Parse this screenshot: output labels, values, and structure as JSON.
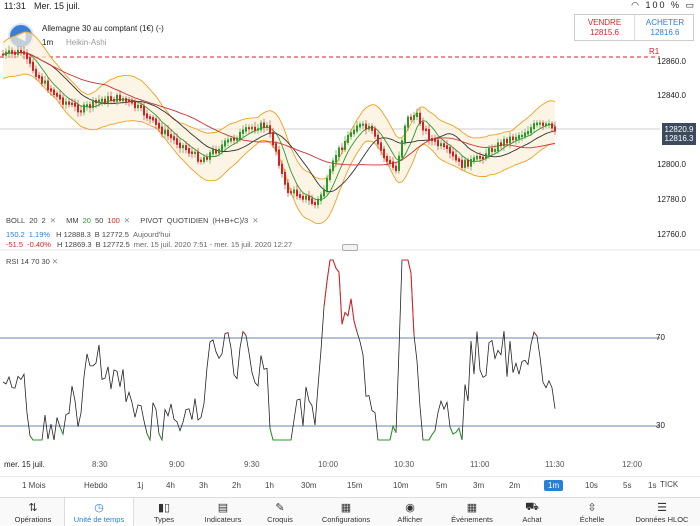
{
  "status": {
    "time": "11:31",
    "date": "Mer. 15 juil.",
    "battery": "100 %"
  },
  "header": {
    "instrument": "Allemagne 30 au comptant (1€) (-)",
    "timeframe": "1m",
    "chart_type": "Heikin-Ashi"
  },
  "quote": {
    "sell_label": "VENDRE",
    "sell_value": "12815.6",
    "buy_label": "ACHETER",
    "buy_value": "12816.6"
  },
  "price_axis": {
    "labels": [
      "12860.0",
      "12840.0",
      "12800.0",
      "12780.0",
      "12760.0"
    ],
    "current_tag_1": "12820.9",
    "current_tag_2": "12816.3",
    "r1_label": "R1"
  },
  "indicators": {
    "boll": {
      "name": "BOLL",
      "p1": "20",
      "p2": "2"
    },
    "mm": {
      "name": "MM",
      "p1": "20",
      "p2": "50",
      "p3": "100"
    },
    "pivot": {
      "name": "PIVOT",
      "period": "QUOTIDIEN",
      "formula": "(H+B+C)/3"
    },
    "row2": {
      "v1": "150.2",
      "v2": "1.19%",
      "h": "H 12888.3",
      "b": "B 12772.5",
      "when": "Aujourd'hui"
    },
    "row3": {
      "v1": "-51.5",
      "v2": "-0.40%",
      "h": "H 12869.3",
      "b": "B 12772.5",
      "range": "mer. 15 juil. 2020 7:51 - mer. 15 juil. 2020 12:27"
    },
    "close_symbol": "✕"
  },
  "rsi": {
    "name": "RSI",
    "p1": "14",
    "p2": "70",
    "p3": "30",
    "level_high": "70",
    "level_low": "30"
  },
  "time_axis": [
    "mer. 15 juil.",
    "8:30",
    "9:00",
    "9:30",
    "10:00",
    "10:30",
    "11:00",
    "11:30",
    "12:00"
  ],
  "ranges": [
    "1 Mois",
    "Hebdo",
    "1j",
    "4h",
    "3h",
    "2h",
    "1h",
    "30m",
    "15m",
    "10m",
    "5m",
    "3m",
    "2m",
    "1m",
    "10s",
    "5s",
    "1s",
    "TICK"
  ],
  "active_range": "1m",
  "toolbar": [
    {
      "label": "Opérations",
      "icon": "arrows-icon"
    },
    {
      "label": "Unité de temps",
      "icon": "clock-icon"
    },
    {
      "label": "Types",
      "icon": "candles-icon"
    },
    {
      "label": "Indicateurs",
      "icon": "chart-icon"
    },
    {
      "label": "Croquis",
      "icon": "pencil-icon"
    },
    {
      "label": "Configurations",
      "icon": "layout-icon"
    },
    {
      "label": "Afficher",
      "icon": "eye-icon"
    },
    {
      "label": "Événements",
      "icon": "calendar-icon"
    },
    {
      "label": "Achat",
      "icon": "cart-icon"
    },
    {
      "label": "Échelle",
      "icon": "scale-icon"
    },
    {
      "label": "Données HLOC",
      "icon": "hloc-icon"
    }
  ],
  "colors": {
    "up": "#2a9a2a",
    "down": "#d22222",
    "accent": "#2a7fd4",
    "boll": "#f0a020"
  }
}
